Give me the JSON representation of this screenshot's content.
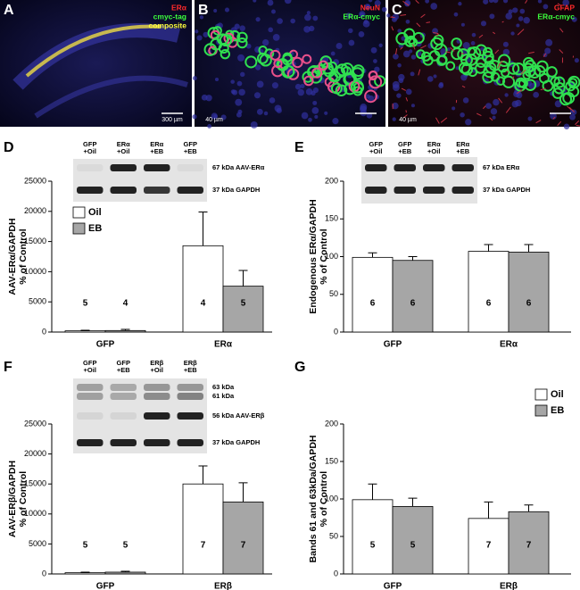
{
  "images": [
    {
      "label": "A",
      "channels": [
        {
          "text": "ERα",
          "color": "#ff2a2a"
        },
        {
          "text": "cmyc-tag",
          "color": "#3cff3c"
        },
        {
          "text": "composite",
          "color": "#ffff3c"
        }
      ],
      "scale": "300 µm"
    },
    {
      "label": "B",
      "channels": [
        {
          "text": "NeuN",
          "color": "#ff2a2a"
        },
        {
          "text": "ERα-cmyc",
          "color": "#3cff3c"
        }
      ],
      "scale": "40 µm"
    },
    {
      "label": "C",
      "channels": [
        {
          "text": "GFAP",
          "color": "#ff2a2a"
        },
        {
          "text": "ERα-cmyc",
          "color": "#3cff3c"
        }
      ],
      "scale": "40 µm"
    }
  ],
  "chart_data": [
    {
      "type": "bar",
      "panel": "D",
      "ylabel": [
        "AAV-ERα/GAPDH",
        "% of Control"
      ],
      "categories": [
        "GFP",
        "ERα"
      ],
      "series": [
        {
          "name": "Oil",
          "color": "#ffffff",
          "values": [
            200,
            14300
          ],
          "errors": [
            100,
            5600
          ],
          "n": [
            5,
            4
          ]
        },
        {
          "name": "EB",
          "color": "#a6a6a6",
          "values": [
            250,
            7600
          ],
          "errors": [
            200,
            2600
          ],
          "n": [
            4,
            5
          ]
        }
      ],
      "ylim": [
        0,
        25000
      ],
      "yticks": [
        0,
        5000,
        10000,
        15000,
        20000,
        25000
      ],
      "legend": "upper left",
      "blot": {
        "lanes": [
          [
            "GFP",
            "+Oil"
          ],
          [
            "ERα",
            "+Oil"
          ],
          [
            "ERα",
            "+EB"
          ],
          [
            "GFP",
            "+EB"
          ]
        ],
        "bands": [
          "67 kDa AAV-ERα",
          "37 kDa GAPDH"
        ]
      }
    },
    {
      "type": "bar",
      "panel": "E",
      "ylabel": [
        "Endogenous ERα/GAPDH",
        "% of Control"
      ],
      "categories": [
        "GFP",
        "ERα"
      ],
      "series": [
        {
          "name": "Oil",
          "color": "#ffffff",
          "values": [
            99,
            107
          ],
          "errors": [
            6,
            9
          ],
          "n": [
            6,
            6
          ]
        },
        {
          "name": "EB",
          "color": "#a6a6a6",
          "values": [
            95,
            106
          ],
          "errors": [
            5,
            10
          ],
          "n": [
            6,
            6
          ]
        }
      ],
      "ylim": [
        0,
        200
      ],
      "yticks": [
        0,
        50,
        100,
        150,
        200
      ],
      "blot": {
        "lanes": [
          [
            "GFP",
            "+Oil"
          ],
          [
            "GFP",
            "+EB"
          ],
          [
            "ERα",
            "+Oil"
          ],
          [
            "ERα",
            "+EB"
          ]
        ],
        "bands": [
          "67 kDa ERα",
          "37 kDa GAPDH"
        ]
      }
    },
    {
      "type": "bar",
      "panel": "F",
      "ylabel": [
        "AAV-ERβ/GAPDH",
        "% of Control"
      ],
      "categories": [
        "GFP",
        "ERβ"
      ],
      "series": [
        {
          "name": "Oil",
          "color": "#ffffff",
          "values": [
            200,
            15000
          ],
          "errors": [
            100,
            3000
          ],
          "n": [
            5,
            7
          ]
        },
        {
          "name": "EB",
          "color": "#a6a6a6",
          "values": [
            300,
            12000
          ],
          "errors": [
            150,
            3200
          ],
          "n": [
            5,
            7
          ]
        }
      ],
      "ylim": [
        0,
        25000
      ],
      "yticks": [
        0,
        5000,
        10000,
        15000,
        20000,
        25000
      ],
      "blot": {
        "lanes": [
          [
            "GFP",
            "+Oil"
          ],
          [
            "GFP",
            "+EB"
          ],
          [
            "ERβ",
            "+Oil"
          ],
          [
            "ERβ",
            "+EB"
          ]
        ],
        "bands": [
          "63 kDa",
          "61 kDa",
          "56 kDa AAV-ERβ",
          "37 kDa GAPDH"
        ]
      }
    },
    {
      "type": "bar",
      "panel": "G",
      "ylabel": [
        "Bands 61 and 63kDa/GAPDH",
        "% of Control"
      ],
      "categories": [
        "GFP",
        "ERβ"
      ],
      "series": [
        {
          "name": "Oil",
          "color": "#ffffff",
          "values": [
            99,
            74
          ],
          "errors": [
            21,
            22
          ],
          "n": [
            5,
            7
          ]
        },
        {
          "name": "EB",
          "color": "#a6a6a6",
          "values": [
            90,
            83
          ],
          "errors": [
            11,
            9
          ],
          "n": [
            5,
            7
          ]
        }
      ],
      "ylim": [
        0,
        200
      ],
      "yticks": [
        0,
        50,
        100,
        150,
        200
      ],
      "legend": "upper right"
    }
  ]
}
